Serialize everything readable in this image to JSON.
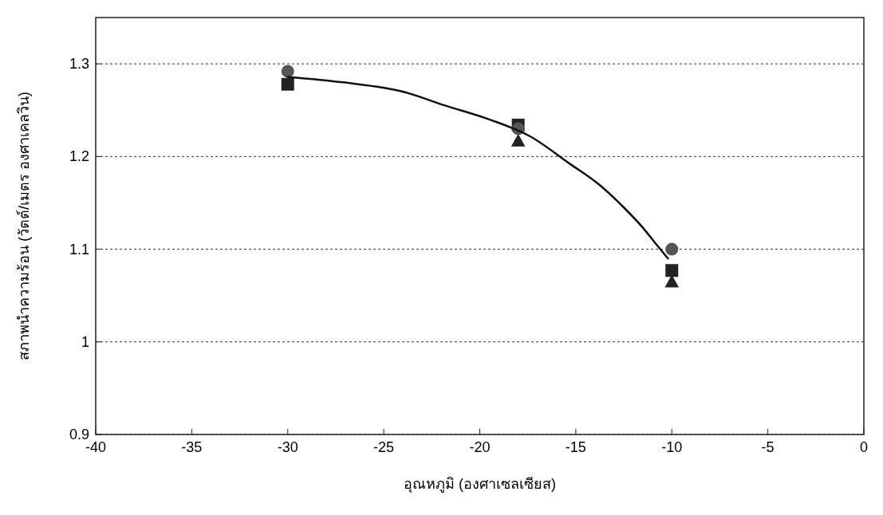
{
  "chart_data": {
    "type": "scatter",
    "xlabel": "อุณหภูมิ (องศาเซลเซียส)",
    "ylabel": "สภาพนำความร้อน (วัตต์/เมตร องศาเคลวิน)",
    "xlim": [
      -40,
      0
    ],
    "xticks": [
      -40,
      -35,
      -30,
      -25,
      -20,
      -15,
      -10,
      -5,
      0
    ],
    "ylim": [
      0.9,
      1.35
    ],
    "yticks": [
      0.9,
      1,
      1.1,
      1.2,
      1.3
    ],
    "grid": "y",
    "series": [
      {
        "marker": "triangle",
        "color": "#222222",
        "x": [
          -18,
          -10
        ],
        "values": [
          1.217,
          1.065
        ]
      },
      {
        "marker": "square",
        "color": "#222222",
        "x": [
          -30,
          -18,
          -10
        ],
        "values": [
          1.278,
          1.234,
          1.077
        ]
      },
      {
        "marker": "circle",
        "color": "#555555",
        "x": [
          -30,
          -18,
          -10
        ],
        "values": [
          1.292,
          1.23,
          1.1
        ]
      },
      {
        "type": "line",
        "marker": "none",
        "line_style": "solid",
        "color": "#111111",
        "x": [
          -30,
          -27.1,
          -24,
          -21.8,
          -19.5,
          -17.4,
          -15.3,
          -13.8,
          -12.5,
          -11.5,
          -10.8,
          -10.2
        ],
        "values": [
          1.286,
          1.28,
          1.27,
          1.255,
          1.24,
          1.222,
          1.192,
          1.17,
          1.145,
          1.123,
          1.105,
          1.09
        ]
      }
    ]
  }
}
